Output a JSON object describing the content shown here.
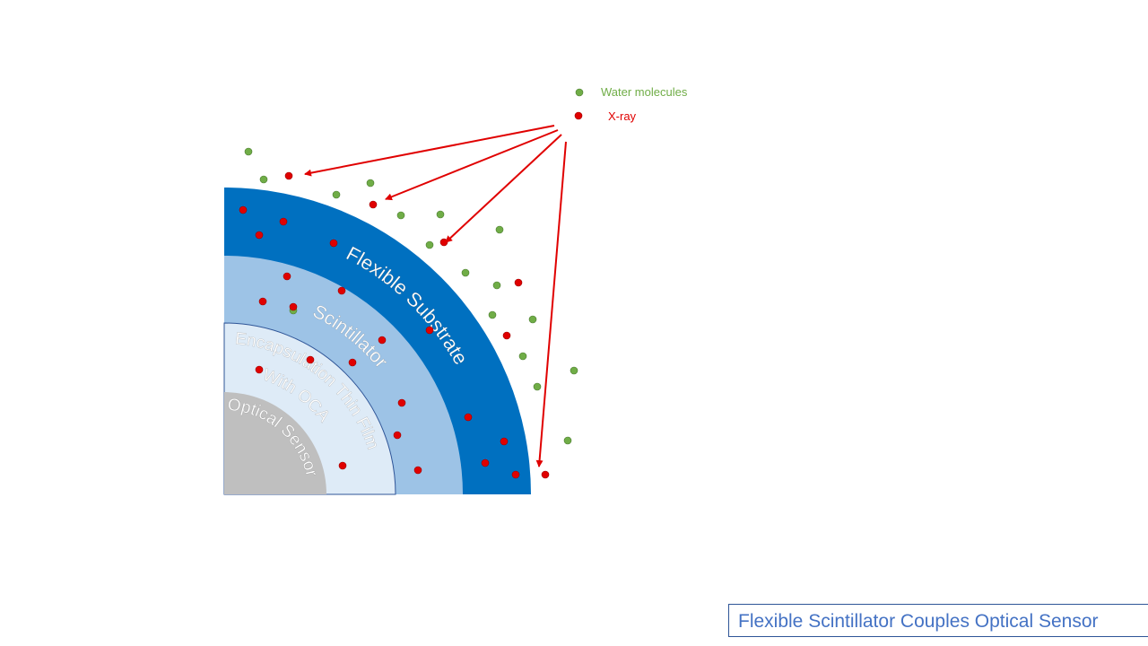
{
  "legend": {
    "water": {
      "label": "Water molecules",
      "color": "#70ad47"
    },
    "xray": {
      "label": "X-ray",
      "color": "#e00000"
    }
  },
  "layers": [
    {
      "label": "Flexible Substrate",
      "color": "#0070c0"
    },
    {
      "label": "Scintillator",
      "color": "#9dc3e6"
    },
    {
      "label": "Encapsulation Thin Film",
      "label2": "With OCA",
      "color": "#deebf7"
    },
    {
      "label": "Optical Sensor",
      "color": "#bfbfbf"
    }
  ],
  "title": "Flexible Scintillator Couples Optical Sensor"
}
